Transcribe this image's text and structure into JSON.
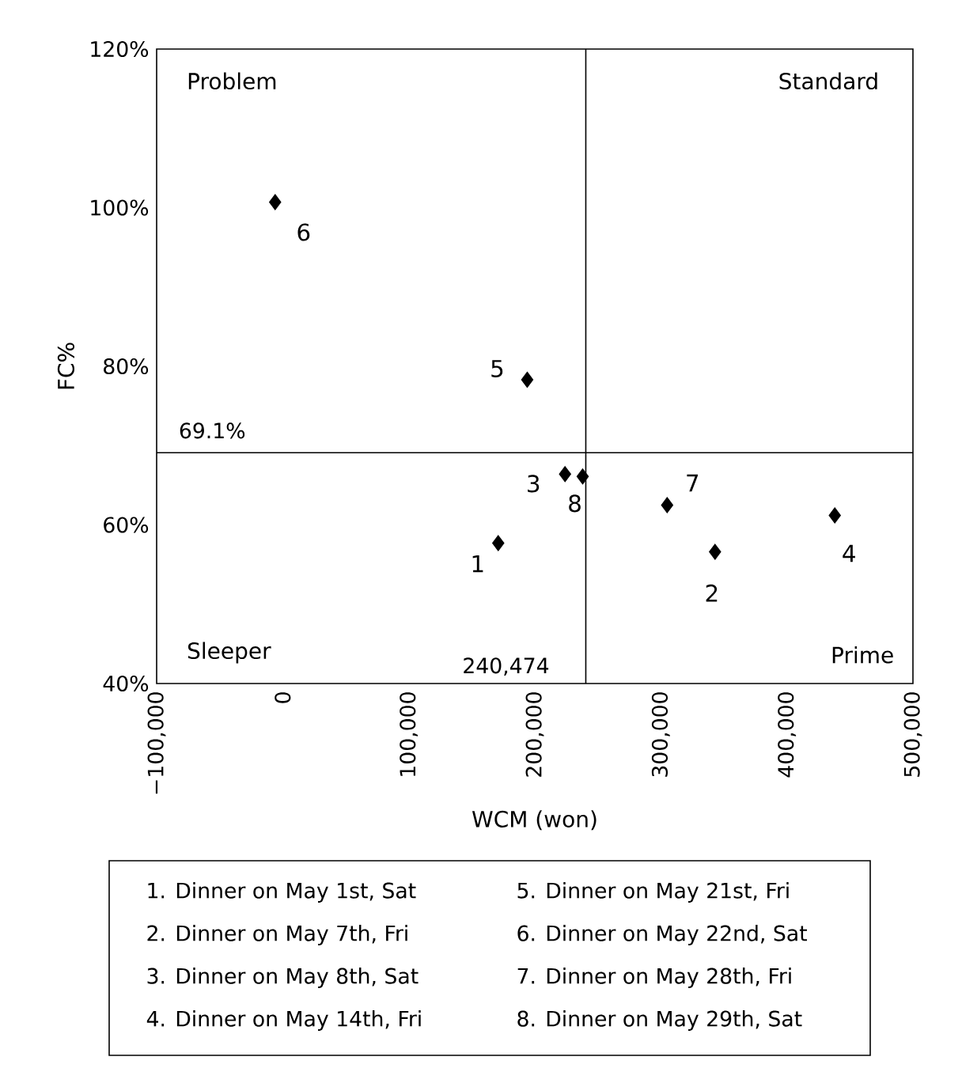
{
  "chart_data": {
    "type": "scatter",
    "xlabel": "WCM (won)",
    "ylabel": "FC%",
    "xlim": [
      -100000,
      500000
    ],
    "ylim": [
      40,
      120
    ],
    "xticks": [
      {
        "value": -100000,
        "label": "−100,000"
      },
      {
        "value": 0,
        "label": "0"
      },
      {
        "value": 100000,
        "label": "100,000"
      },
      {
        "value": 200000,
        "label": "200,000"
      },
      {
        "value": 300000,
        "label": "300,000"
      },
      {
        "value": 400000,
        "label": "400,000"
      },
      {
        "value": 500000,
        "label": "500,000"
      }
    ],
    "yticks": [
      {
        "value": 40,
        "label": "40%"
      },
      {
        "value": 60,
        "label": "60%"
      },
      {
        "value": 80,
        "label": "80%"
      },
      {
        "value": 100,
        "label": "100%"
      },
      {
        "value": 120,
        "label": "120%"
      }
    ],
    "marker": "diamond",
    "series": [
      {
        "name": "1",
        "color": "#000000",
        "x": [
          171000
        ],
        "values": [
          57.7
        ]
      },
      {
        "name": "2",
        "color": "#000000",
        "x": [
          343000
        ],
        "values": [
          56.6
        ]
      },
      {
        "name": "3",
        "color": "#000000",
        "x": [
          224000
        ],
        "values": [
          66.4
        ]
      },
      {
        "name": "4",
        "color": "#000000",
        "x": [
          438000
        ],
        "values": [
          61.2
        ]
      },
      {
        "name": "5",
        "color": "#000000",
        "x": [
          194000
        ],
        "values": [
          78.3
        ]
      },
      {
        "name": "6",
        "color": "#000000",
        "x": [
          -6000
        ],
        "values": [
          100.7
        ]
      },
      {
        "name": "7",
        "color": "#000000",
        "x": [
          305000
        ],
        "values": [
          62.5
        ]
      },
      {
        "name": "8",
        "color": "#000000",
        "x": [
          238000
        ],
        "values": [
          66.1
        ]
      }
    ],
    "ref_lines": [
      {
        "axis": "y",
        "value": 69.1,
        "label": "69.1%",
        "color": "#000000"
      },
      {
        "axis": "x",
        "value": 240474,
        "label": "240,474",
        "color": "#000000"
      }
    ],
    "annotations": [
      "Problem",
      "Standard",
      "Sleeper",
      "Prime",
      "1. Dinner on May 1st, Sat",
      "2. Dinner on May 7th, Fri",
      "3. Dinner on May 8th, Sat",
      "4. Dinner on May 14th, Fri",
      "5. Dinner on May 21st, Fri",
      "6. Dinner on May 22nd, Sat",
      "7. Dinner on May 28th, Fri",
      "8. Dinner on May 29th, Sat"
    ],
    "grid": false
  }
}
